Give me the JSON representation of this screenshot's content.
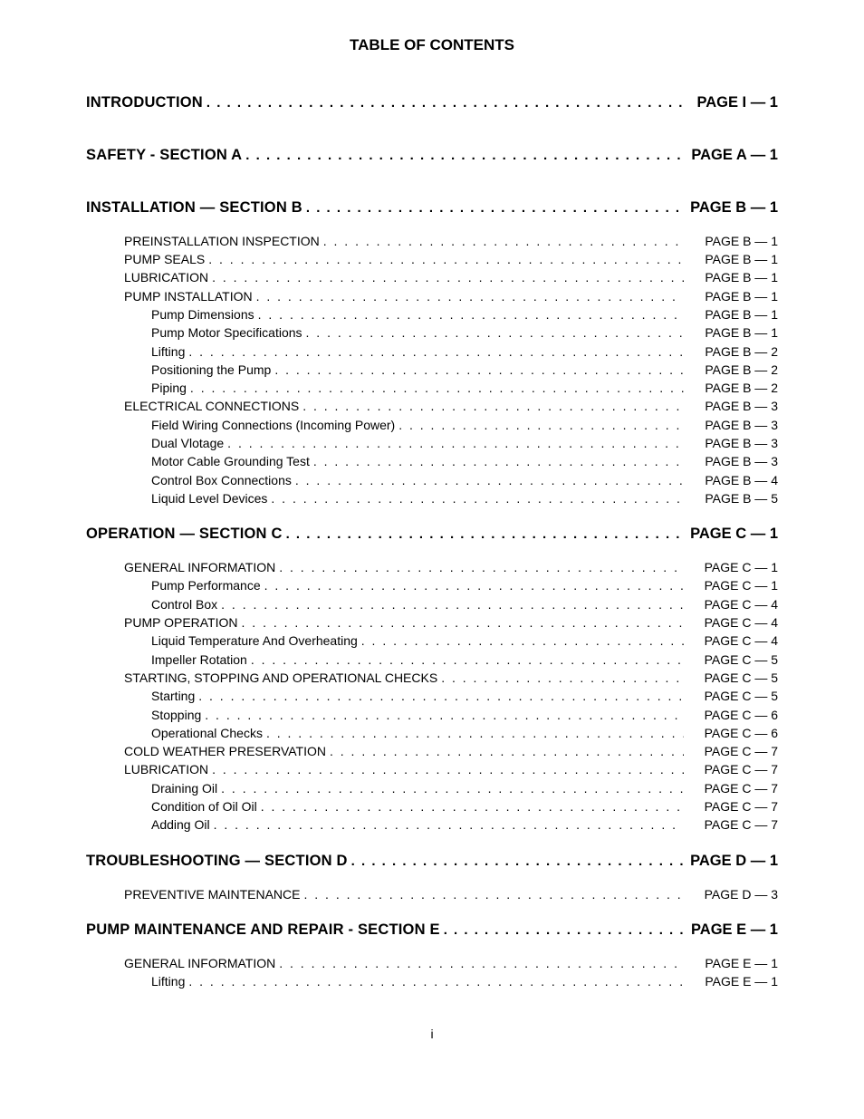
{
  "title": "TABLE OF CONTENTS",
  "page_number": "i",
  "colors": {
    "background": "#ffffff",
    "text": "#000000"
  },
  "typography": {
    "font_family": "Arial, Helvetica, sans-serif",
    "title_size_pt": 13,
    "main_size_pt": 12,
    "sub_size_pt": 10.5
  },
  "sections": [
    {
      "label": "INTRODUCTION",
      "page": "PAGE I — 1",
      "entries": []
    },
    {
      "label": "SAFETY - SECTION A",
      "page": "PAGE A — 1",
      "entries": []
    },
    {
      "label": "INSTALLATION — SECTION B",
      "page": "PAGE B — 1",
      "entries": [
        {
          "level": 1,
          "label": "PREINSTALLATION INSPECTION",
          "page": "PAGE B — 1"
        },
        {
          "level": 1,
          "label": "PUMP SEALS",
          "page": "PAGE B — 1"
        },
        {
          "level": 1,
          "label": "LUBRICATION",
          "page": "PAGE B — 1"
        },
        {
          "level": 1,
          "label": "PUMP INSTALLATION",
          "page": "PAGE B — 1"
        },
        {
          "level": 2,
          "label": "Pump Dimensions",
          "page": "PAGE B — 1"
        },
        {
          "level": 2,
          "label": "Pump Motor Specifications",
          "page": "PAGE B — 1"
        },
        {
          "level": 2,
          "label": "Lifting",
          "page": "PAGE B — 2"
        },
        {
          "level": 2,
          "label": "Positioning the Pump",
          "page": "PAGE B — 2"
        },
        {
          "level": 2,
          "label": "Piping",
          "page": "PAGE B — 2"
        },
        {
          "level": 1,
          "label": "ELECTRICAL CONNECTIONS",
          "page": "PAGE B — 3"
        },
        {
          "level": 2,
          "label": "Field Wiring Connections (Incoming Power)",
          "page": "PAGE B — 3"
        },
        {
          "level": 2,
          "label": "Dual Vlotage",
          "page": "PAGE B — 3"
        },
        {
          "level": 2,
          "label": "Motor Cable Grounding Test",
          "page": "PAGE B — 3"
        },
        {
          "level": 2,
          "label": "Control Box Connections",
          "page": "PAGE B — 4"
        },
        {
          "level": 2,
          "label": "Liquid Level Devices",
          "page": "PAGE B — 5"
        }
      ]
    },
    {
      "label": "OPERATION — SECTION C",
      "page": "PAGE C — 1",
      "entries": [
        {
          "level": 1,
          "label": "GENERAL INFORMATION",
          "page": "PAGE C — 1"
        },
        {
          "level": 2,
          "label": "Pump Performance",
          "page": "PAGE C — 1"
        },
        {
          "level": 2,
          "label": "Control Box",
          "page": "PAGE C — 4"
        },
        {
          "level": 1,
          "label": "PUMP OPERATION",
          "page": "PAGE C — 4"
        },
        {
          "level": 2,
          "label": "Liquid Temperature And Overheating",
          "page": "PAGE C — 4"
        },
        {
          "level": 2,
          "label": "Impeller Rotation",
          "page": "PAGE C — 5"
        },
        {
          "level": 1,
          "label": "STARTING, STOPPING AND OPERATIONAL CHECKS",
          "page": "PAGE C — 5"
        },
        {
          "level": 2,
          "label": "Starting",
          "page": "PAGE C — 5"
        },
        {
          "level": 2,
          "label": "Stopping",
          "page": "PAGE C — 6"
        },
        {
          "level": 2,
          "label": "Operational Checks",
          "page": "PAGE C — 6"
        },
        {
          "level": 1,
          "label": "COLD WEATHER PRESERVATION",
          "page": "PAGE C — 7"
        },
        {
          "level": 1,
          "label": "LUBRICATION",
          "page": "PAGE C — 7"
        },
        {
          "level": 2,
          "label": "Draining Oil",
          "page": "PAGE C — 7"
        },
        {
          "level": 2,
          "label": "Condition of Oil Oil",
          "page": "PAGE C — 7"
        },
        {
          "level": 2,
          "label": "Adding Oil",
          "page": "PAGE C — 7"
        }
      ]
    },
    {
      "label": "TROUBLESHOOTING — SECTION D",
      "page": "PAGE D — 1",
      "entries": [
        {
          "level": 1,
          "label": "PREVENTIVE MAINTENANCE",
          "page": "PAGE D — 3"
        }
      ]
    },
    {
      "label": "PUMP MAINTENANCE AND REPAIR - SECTION E",
      "page": "PAGE E — 1",
      "entries": [
        {
          "level": 1,
          "label": "GENERAL INFORMATION",
          "page": "PAGE E — 1"
        },
        {
          "level": 2,
          "label": "Lifting",
          "page": "PAGE E — 1"
        }
      ]
    }
  ]
}
